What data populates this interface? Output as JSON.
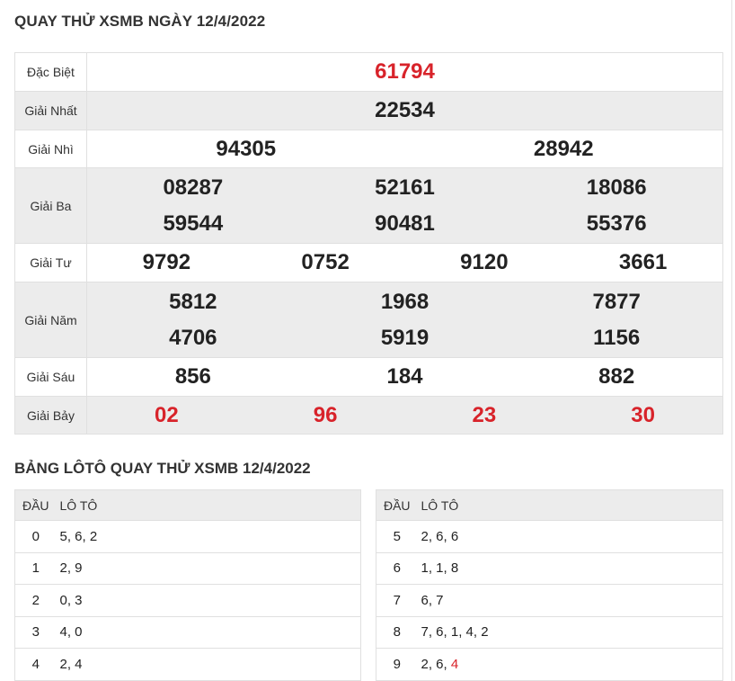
{
  "title": "QUAY THỬ XSMB NGÀY 12/4/2022",
  "prizes": {
    "db": {
      "label": "Đặc Biệt",
      "nums": [
        "61794"
      ]
    },
    "nhat": {
      "label": "Giải Nhất",
      "nums": [
        "22534"
      ]
    },
    "nhi": {
      "label": "Giải Nhì",
      "nums": [
        "94305",
        "28942"
      ]
    },
    "ba": {
      "label": "Giải Ba",
      "nums": [
        "08287",
        "52161",
        "18086",
        "59544",
        "90481",
        "55376"
      ]
    },
    "tu": {
      "label": "Giải Tư",
      "nums": [
        "9792",
        "0752",
        "9120",
        "3661"
      ]
    },
    "nam": {
      "label": "Giải Năm",
      "nums": [
        "5812",
        "1968",
        "7877",
        "4706",
        "5919",
        "1156"
      ]
    },
    "sau": {
      "label": "Giải Sáu",
      "nums": [
        "856",
        "184",
        "882"
      ]
    },
    "bay": {
      "label": "Giải Bảy",
      "nums": [
        "02",
        "96",
        "23",
        "30"
      ]
    }
  },
  "loto_title": "BẢNG LÔTÔ QUAY THỬ XSMB 12/4/2022",
  "loto": {
    "head_label": "ĐẦU",
    "loto_label": "LÔ TÔ",
    "left": [
      {
        "dau": "0",
        "lo": "5, 6, 2"
      },
      {
        "dau": "1",
        "lo": "2, 9"
      },
      {
        "dau": "2",
        "lo": "0, 3"
      },
      {
        "dau": "3",
        "lo": "4, 0"
      },
      {
        "dau": "4",
        "lo": "2, 4"
      }
    ],
    "right": [
      {
        "dau": "5",
        "lo": "2, 6, 6"
      },
      {
        "dau": "6",
        "lo": "1, 1, 8"
      },
      {
        "dau": "7",
        "lo": "6, 7"
      },
      {
        "dau": "8",
        "lo": "7, 6, 1, 4, 2"
      },
      {
        "dau": "9",
        "lo": "2, 6, ",
        "lo_hl": "4"
      }
    ]
  },
  "colors": {
    "red": "#d8232a",
    "alt_row": "#ececec",
    "border": "#e0e0e0"
  }
}
